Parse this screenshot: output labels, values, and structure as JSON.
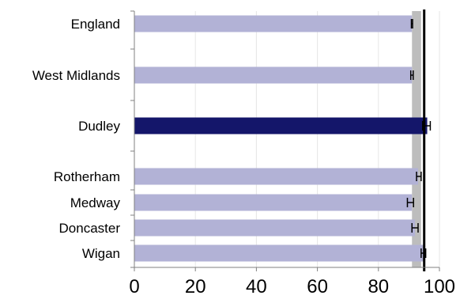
{
  "chart_data": {
    "type": "bar",
    "orientation": "horizontal",
    "categories": [
      "England",
      "West Midlands",
      "Dudley",
      "Rotherham",
      "Medway",
      "Doncaster",
      "Wigan"
    ],
    "values": [
      91,
      91,
      96,
      93,
      91,
      92,
      95
    ],
    "error_bars": [
      {
        "category": "England",
        "low": 90.8,
        "high": 91.2
      },
      {
        "category": "West Midlands",
        "low": 90.6,
        "high": 91.4
      },
      {
        "category": "Dudley",
        "low": 94.5,
        "high": 97.0
      },
      {
        "category": "Rotherham",
        "low": 92.5,
        "high": 94.0
      },
      {
        "category": "Medway",
        "low": 89.5,
        "high": 91.5
      },
      {
        "category": "Doncaster",
        "low": 91.0,
        "high": 93.0
      },
      {
        "category": "Wigan",
        "low": 94.0,
        "high": 95.5
      }
    ],
    "highlighted_category": "Dudley",
    "reference_band": {
      "low": 91,
      "high": 94
    },
    "reference_line": 95,
    "xlim": [
      0,
      100
    ],
    "x_ticks": [
      0,
      20,
      40,
      60,
      80,
      100
    ],
    "grid": true,
    "legend": "none",
    "title": "",
    "xlabel": "",
    "ylabel": "",
    "colors": {
      "bar": "#b2b2d6",
      "highlight_bar": "#14166a",
      "band": "#bdbdbd",
      "reference_line": "#000000",
      "grid": "#e6e6e6",
      "axis": "#808080",
      "text": "#000000"
    }
  }
}
